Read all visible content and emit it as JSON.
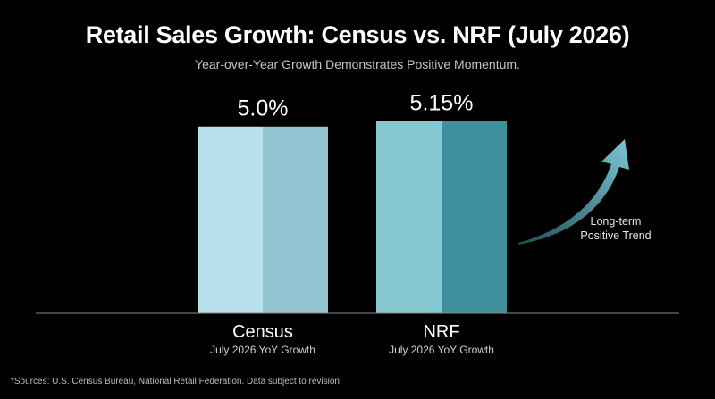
{
  "chart_data": {
    "type": "bar",
    "title": "Retail Sales Growth: Census vs. NRF (July 2026)",
    "subtitle": "Year-over-Year Growth Demonstrates Positive Momentum.",
    "categories": [
      "Census",
      "NRF"
    ],
    "category_sublabels": [
      "July 2026 YoY Growth",
      "July 2026 YoY Growth"
    ],
    "values": [
      5.0,
      5.15
    ],
    "data_labels": [
      "5.0%",
      "5.15%"
    ],
    "unit": "%",
    "ylim": [
      0,
      5.4
    ],
    "grid": false,
    "bar_colors": [
      {
        "light": "#b8e0ea",
        "dark": "#93c4d2"
      },
      {
        "light": "#86c8d2",
        "dark": "#3f8f9c"
      }
    ],
    "annotation": {
      "line1": "Long-term",
      "line2": "Positive Trend",
      "arrow_color": "#6bb4c2"
    },
    "footnote": "*Sources: U.S. Census Bureau, National Retail Federation. Data subject to revision."
  }
}
